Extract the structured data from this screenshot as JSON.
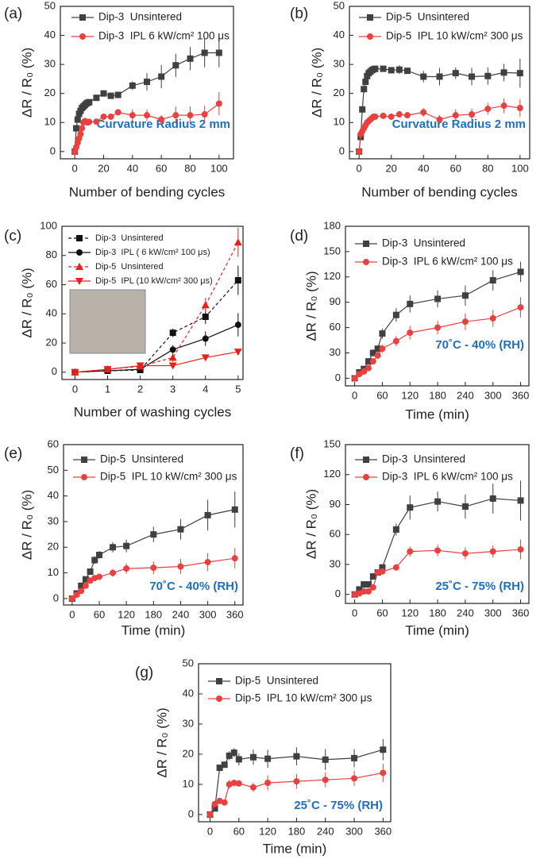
{
  "chart_data": [
    {
      "type": "line",
      "panel_label": "(a)",
      "x_label": "Number of bending cycles",
      "y_label": "ΔR / R₀ (%)",
      "annotation": "Curvature Radius 2 mm",
      "x": [
        0,
        1,
        2,
        3,
        4,
        5,
        6,
        7,
        8,
        9,
        10,
        15,
        20,
        25,
        30,
        40,
        50,
        60,
        70,
        80,
        90,
        100
      ],
      "xlim": [
        -10,
        110
      ],
      "xticks": [
        0,
        20,
        40,
        60,
        80,
        100
      ],
      "ylim": [
        -2.5,
        50
      ],
      "yticks": [
        0,
        10,
        20,
        30,
        40,
        50
      ],
      "series": [
        {
          "name": "Dip-3  Unsintered",
          "color": "#404040",
          "marker": "square",
          "linestyle": "solid",
          "values": [
            0,
            8,
            11,
            13,
            14,
            15,
            15.5,
            16,
            16.5,
            16.8,
            17,
            18.5,
            20,
            19.2,
            19.5,
            22.7,
            24,
            25.8,
            29.7,
            32,
            34,
            34
          ],
          "errors": [
            0,
            0,
            0,
            0,
            0,
            0,
            0,
            0,
            0,
            0,
            0,
            0.5,
            0.5,
            0.5,
            0.5,
            1.5,
            3,
            4,
            4,
            4,
            5,
            5
          ]
        },
        {
          "name": "Dip-3  IPL 6 kW/cm² 100 μs",
          "color": "#e8413f",
          "marker": "circle",
          "linestyle": "solid",
          "values": [
            0,
            1.5,
            3,
            4.5,
            6,
            8,
            10,
            10.5,
            10.2,
            10,
            10.2,
            10.3,
            12,
            12,
            13.5,
            12.5,
            12.5,
            11,
            12.5,
            12.5,
            12.8,
            16.5
          ],
          "errors": [
            0,
            0,
            0,
            0,
            0,
            0,
            0,
            0,
            0,
            0,
            0,
            0.5,
            1,
            0.5,
            1,
            2,
            2,
            1.5,
            3,
            3,
            3,
            4
          ]
        }
      ]
    },
    {
      "type": "line",
      "panel_label": "(b)",
      "x_label": "Number of bending cycles",
      "y_label": "ΔR / R₀ (%)",
      "annotation": "Curvature Radius 2 mm",
      "x": [
        0,
        1,
        2,
        3,
        4,
        5,
        6,
        7,
        8,
        9,
        10,
        15,
        20,
        25,
        30,
        40,
        50,
        60,
        70,
        80,
        90,
        100
      ],
      "xlim": [
        -6,
        106
      ],
      "xticks": [
        0,
        20,
        40,
        60,
        80,
        100
      ],
      "ylim": [
        -2.5,
        50
      ],
      "yticks": [
        0,
        10,
        20,
        30,
        40,
        50
      ],
      "series": [
        {
          "name": "Dip-5  Unsintered",
          "color": "#404040",
          "marker": "square",
          "linestyle": "solid",
          "values": [
            0,
            5,
            14.5,
            21.5,
            24,
            26,
            27,
            27.5,
            28,
            28.3,
            28.5,
            28.5,
            28,
            28.2,
            27.8,
            25.8,
            25.8,
            27,
            25.8,
            26,
            27.2,
            27
          ],
          "errors": [
            0,
            0,
            0,
            0,
            0,
            0,
            0,
            0,
            0,
            0,
            0,
            1,
            1,
            1.5,
            1,
            2,
            3,
            2,
            3,
            3,
            3,
            5
          ]
        },
        {
          "name": "Dip-5  IPL 10 kW/cm² 300 μs",
          "color": "#e8413f",
          "marker": "circle",
          "linestyle": "solid",
          "values": [
            0,
            6,
            7,
            8,
            9,
            10,
            10.5,
            11,
            11.5,
            12,
            12,
            12.3,
            12,
            12.8,
            12.5,
            13.5,
            11,
            12.5,
            12.8,
            14.7,
            15.8,
            15
          ],
          "errors": [
            0,
            0,
            0,
            0,
            0,
            0,
            0,
            0,
            0,
            0,
            0,
            1,
            1,
            1,
            1,
            1.5,
            1.5,
            2,
            2,
            2,
            2.5,
            3
          ]
        }
      ]
    },
    {
      "type": "line",
      "panel_label": "(c)",
      "x_label": "Number of washing cycles",
      "y_label": "ΔR / R₀ (%)",
      "x": [
        0,
        1,
        2,
        3,
        4,
        5
      ],
      "xlim": [
        -0.4,
        5.15
      ],
      "xticks": [
        0,
        1,
        2,
        3,
        4,
        5
      ],
      "ylim": [
        -5,
        100
      ],
      "yticks": [
        0,
        20,
        40,
        60,
        80,
        100
      ],
      "series": [
        {
          "name": "Dip-3  Unsintered",
          "color": "#111111",
          "marker": "square",
          "linestyle": "dashed",
          "values": [
            0,
            1,
            1.5,
            27,
            38,
            63
          ],
          "errors": [
            0,
            0,
            0,
            3,
            5,
            10
          ]
        },
        {
          "name": "Dip-3  IPL ( 6 kW/cm² 100 μs)",
          "color": "#111111",
          "marker": "circle",
          "linestyle": "solid",
          "values": [
            0,
            1,
            2,
            15.5,
            23,
            32.5
          ],
          "errors": [
            0,
            0,
            0,
            3,
            5,
            8
          ]
        },
        {
          "name": "Dip-5  Unsintered",
          "color": "#e8201c",
          "marker": "triangle-up",
          "linestyle": "dashed",
          "values": [
            0,
            2,
            4,
            10,
            46,
            89
          ],
          "errors": [
            0,
            0,
            0,
            3,
            5,
            10
          ]
        },
        {
          "name": "Dip-5  IPL (10 kW/cm² 300 μs)",
          "color": "#e8201c",
          "marker": "triangle-down",
          "linestyle": "solid",
          "values": [
            0,
            2,
            4.5,
            4.5,
            10,
            14
          ],
          "errors": [
            0,
            0,
            0,
            2,
            2,
            2
          ]
        }
      ]
    },
    {
      "type": "line",
      "panel_label": "(d)",
      "x_label": "Time (min)",
      "y_label": "ΔR / R₀ (%)",
      "annotation": "70˚C - 40% (RH)",
      "x": [
        0,
        10,
        20,
        30,
        40,
        50,
        60,
        90,
        120,
        180,
        240,
        300,
        360
      ],
      "xlim": [
        -20,
        378
      ],
      "xticks": [
        0,
        60,
        120,
        180,
        240,
        300,
        360
      ],
      "ylim": [
        -9,
        180
      ],
      "yticks": [
        0,
        30,
        60,
        90,
        120,
        150,
        180
      ],
      "series": [
        {
          "name": "Dip-3  Unsintered",
          "color": "#404040",
          "marker": "square",
          "linestyle": "solid",
          "values": [
            0,
            7,
            11,
            20,
            30,
            35,
            53,
            75,
            88,
            94,
            98,
            116,
            126
          ],
          "errors": [
            0,
            2,
            2,
            3,
            4,
            4,
            6,
            8,
            10,
            10,
            12,
            12,
            12
          ]
        },
        {
          "name": "Dip-3  IPL 6 kW/cm² 100 μs",
          "color": "#e8413f",
          "marker": "circle",
          "linestyle": "solid",
          "values": [
            0,
            5,
            8,
            12,
            20,
            27,
            35,
            44,
            54,
            60,
            67,
            71,
            84
          ],
          "errors": [
            0,
            2,
            2,
            3,
            3,
            4,
            5,
            6,
            8,
            8,
            10,
            10,
            12
          ]
        }
      ]
    },
    {
      "type": "line",
      "panel_label": "(e)",
      "x_label": "Time (min)",
      "y_label": "ΔR / R₀ (%)",
      "annotation": "70˚C - 40% (RH)",
      "x": [
        0,
        10,
        20,
        30,
        40,
        50,
        60,
        90,
        120,
        180,
        240,
        300,
        360
      ],
      "xlim": [
        -19,
        378
      ],
      "xticks": [
        0,
        60,
        120,
        180,
        240,
        300,
        360
      ],
      "ylim": [
        -2.5,
        60
      ],
      "yticks": [
        0,
        10,
        20,
        30,
        40,
        50,
        60
      ],
      "series": [
        {
          "name": "Dip-5  Unsintered",
          "color": "#404040",
          "marker": "square",
          "linestyle": "solid",
          "values": [
            0,
            2,
            5,
            7.5,
            10.5,
            15,
            17,
            20,
            20.5,
            25,
            27,
            32.5,
            34.7
          ],
          "errors": [
            0,
            0.5,
            0.5,
            1,
            1,
            1.5,
            1.5,
            2,
            2.5,
            3,
            4,
            6,
            7
          ]
        },
        {
          "name": "Dip-5  IPL 10 kW/cm² 300 μs",
          "color": "#e8413f",
          "marker": "circle",
          "linestyle": "solid",
          "values": [
            0,
            1.5,
            3,
            5,
            7,
            8,
            8.5,
            10,
            11.7,
            12,
            12.5,
            14.2,
            15.7
          ],
          "errors": [
            0,
            0.5,
            0.5,
            1,
            1,
            1,
            1,
            1.5,
            2,
            2.5,
            3,
            3.5,
            4
          ]
        }
      ]
    },
    {
      "type": "line",
      "panel_label": "(f)",
      "x_label": "Time (min)",
      "y_label": "ΔR / R₀ (%)",
      "annotation": "25˚C - 75% (RH)",
      "x": [
        0,
        10,
        20,
        30,
        40,
        50,
        60,
        90,
        120,
        180,
        240,
        300,
        360
      ],
      "xlim": [
        -20,
        378
      ],
      "xticks": [
        0,
        60,
        120,
        180,
        240,
        300,
        360
      ],
      "ylim": [
        -9,
        150
      ],
      "yticks": [
        0,
        30,
        60,
        90,
        120,
        150
      ],
      "series": [
        {
          "name": "Dip-3  Unsintered",
          "color": "#404040",
          "marker": "square",
          "linestyle": "solid",
          "values": [
            0,
            5,
            10,
            10,
            18,
            22,
            27,
            65,
            87,
            93,
            88,
            96,
            94
          ],
          "errors": [
            0,
            1,
            2,
            2,
            3,
            3,
            3,
            6,
            12,
            10,
            12,
            15,
            20
          ]
        },
        {
          "name": "Dip-3  IPL 6 kW/cm² 100 μs",
          "color": "#e8413f",
          "marker": "circle",
          "linestyle": "solid",
          "values": [
            0,
            1,
            3,
            3,
            7,
            22,
            23,
            27,
            43,
            44,
            41,
            43,
            45
          ],
          "errors": [
            0,
            1,
            1,
            1,
            2,
            3,
            3,
            3,
            5,
            6,
            6,
            6,
            10
          ]
        }
      ]
    },
    {
      "type": "line",
      "panel_label": "(g)",
      "x_label": "Time (min)",
      "y_label": "ΔR / R₀ (%)",
      "annotation": "25˚C - 75% (RH)",
      "x": [
        0,
        10,
        20,
        30,
        40,
        50,
        60,
        90,
        120,
        180,
        240,
        300,
        360
      ],
      "xlim": [
        -24,
        376
      ],
      "xticks": [
        0,
        60,
        120,
        180,
        240,
        300,
        360
      ],
      "ylim": [
        -2.4,
        50
      ],
      "yticks": [
        0,
        10,
        20,
        30,
        40,
        50
      ],
      "series": [
        {
          "name": "Dip-5  Unsintered",
          "color": "#404040",
          "marker": "square",
          "linestyle": "solid",
          "values": [
            0,
            2,
            15.5,
            16.5,
            19.5,
            20.5,
            18.3,
            19,
            18.5,
            19.3,
            18.2,
            18.7,
            21.5
          ],
          "errors": [
            0,
            0.5,
            1,
            1,
            1.5,
            1.5,
            2,
            2.5,
            3,
            3,
            3.5,
            3,
            3.5
          ]
        },
        {
          "name": "Dip-5  IPL 10 kW/cm² 300 μs",
          "color": "#e8413f",
          "marker": "circle",
          "linestyle": "solid",
          "values": [
            0,
            3.5,
            4.5,
            4,
            10,
            10.5,
            10.3,
            9,
            10.5,
            11,
            11.5,
            12,
            13.8
          ],
          "errors": [
            0,
            0.5,
            1,
            1,
            1.5,
            1,
            1,
            1.5,
            2.5,
            2.5,
            2.5,
            2.5,
            3
          ]
        }
      ]
    }
  ]
}
